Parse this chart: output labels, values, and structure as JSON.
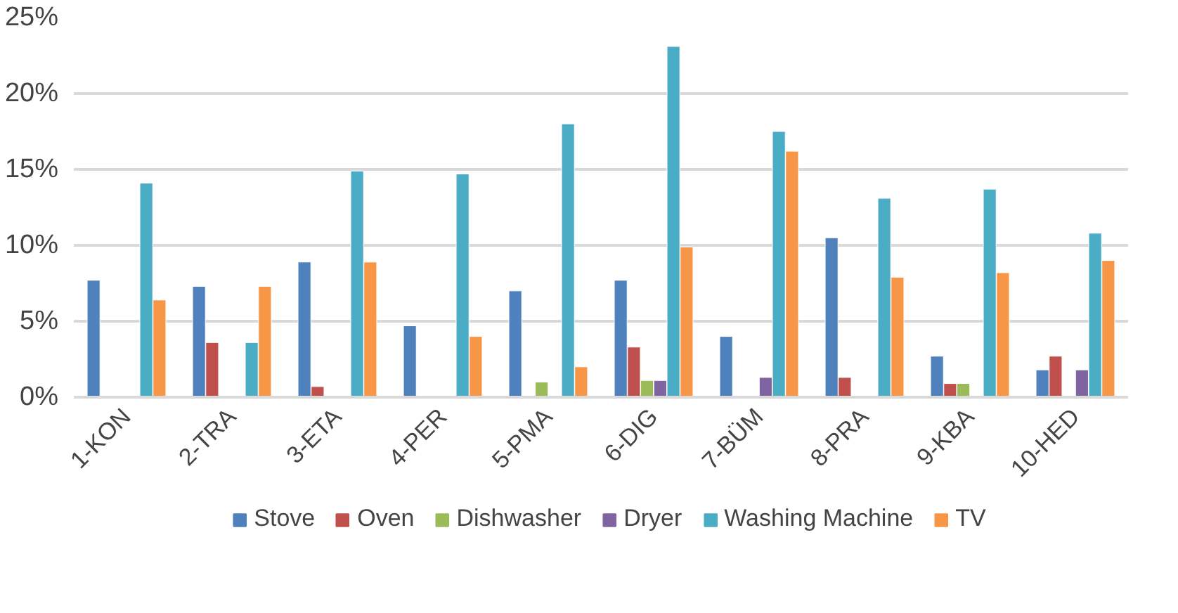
{
  "chart_data": {
    "type": "bar",
    "categories": [
      "1-KON",
      "2-TRA",
      "3-ETA",
      "4-PER",
      "5-PMA",
      "6-DIG",
      "7-BÜM",
      "8-PRA",
      "9-KBA",
      "10-HED"
    ],
    "series": [
      {
        "name": "Stove",
        "color": "#4f81bd",
        "values": [
          7.7,
          7.3,
          8.9,
          4.7,
          7.0,
          7.7,
          4.0,
          10.5,
          2.7,
          1.8
        ]
      },
      {
        "name": "Oven",
        "color": "#c0504d",
        "values": [
          null,
          3.6,
          0.7,
          null,
          null,
          3.3,
          null,
          1.3,
          0.9,
          2.7
        ]
      },
      {
        "name": "Dishwasher",
        "color": "#9bbb59",
        "values": [
          null,
          null,
          null,
          null,
          1.0,
          1.1,
          null,
          null,
          0.9,
          null
        ]
      },
      {
        "name": "Dryer",
        "color": "#8064a2",
        "values": [
          null,
          null,
          null,
          null,
          null,
          1.1,
          1.3,
          null,
          null,
          1.8
        ]
      },
      {
        "name": "Washing Machine",
        "color": "#4bacc6",
        "values": [
          14.1,
          3.6,
          14.9,
          14.7,
          18.0,
          23.1,
          17.5,
          13.1,
          13.7,
          10.8
        ]
      },
      {
        "name": "TV",
        "color": "#f79646",
        "values": [
          6.4,
          7.3,
          8.9,
          4.0,
          2.0,
          9.9,
          16.2,
          7.9,
          8.2,
          9.0
        ]
      }
    ],
    "ylim": [
      0,
      25
    ],
    "yticks": [
      {
        "value": 0,
        "label": "0%"
      },
      {
        "value": 5,
        "label": "5%"
      },
      {
        "value": 10,
        "label": "10%"
      },
      {
        "value": 15,
        "label": "15%"
      },
      {
        "value": 20,
        "label": "20%"
      },
      {
        "value": 25,
        "label": "25%"
      }
    ],
    "grid": "y",
    "legend": "bottom"
  }
}
